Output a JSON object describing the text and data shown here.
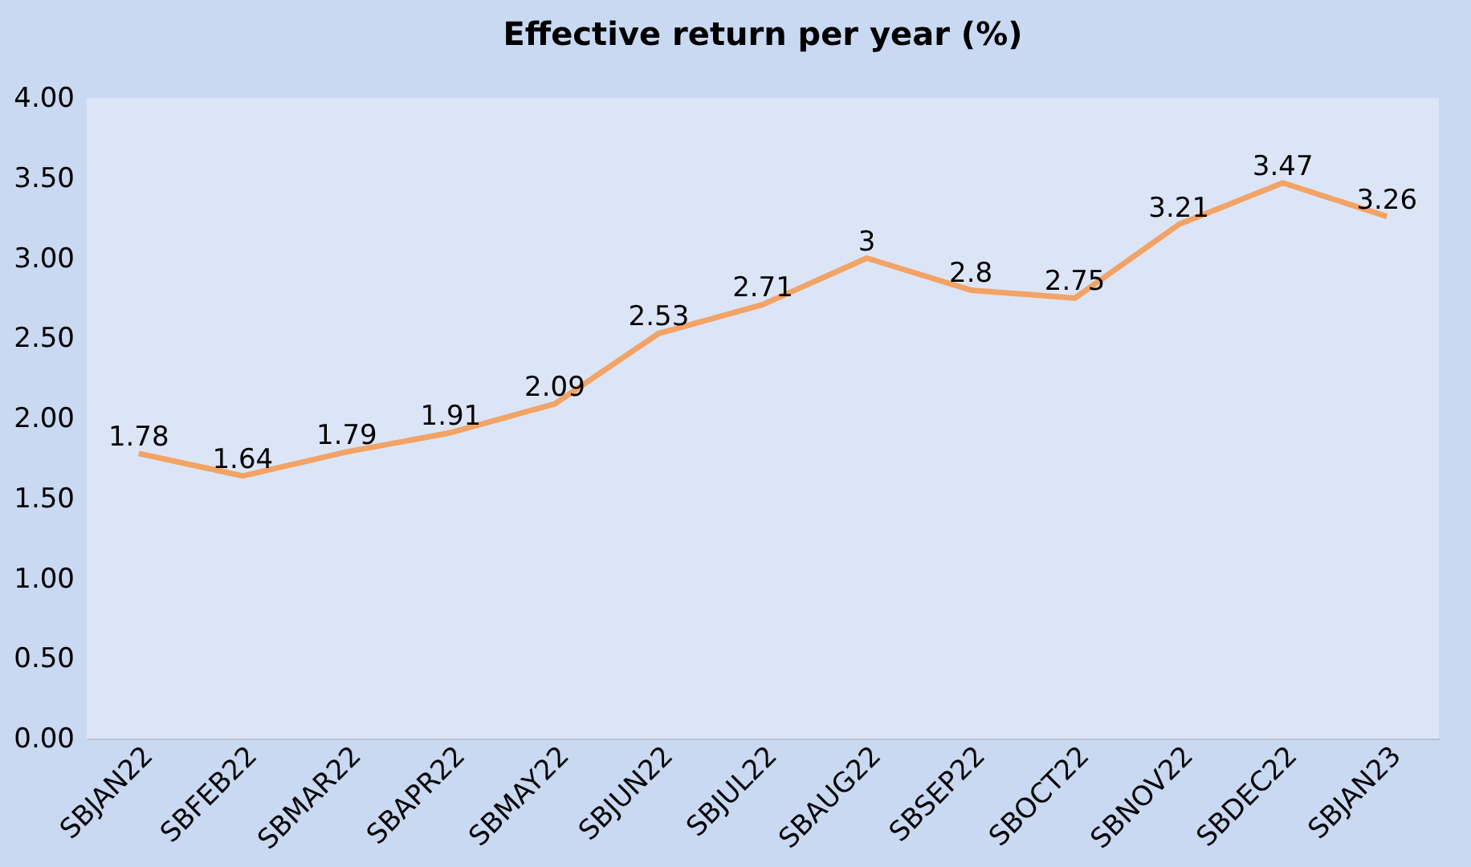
{
  "chart_data": {
    "type": "line",
    "title": "Effective return per year (%)",
    "categories": [
      "SBJAN22",
      "SBFEB22",
      "SBMAR22",
      "SBAPR22",
      "SBMAY22",
      "SBJUN22",
      "SBJUL22",
      "SBAUG22",
      "SBSEP22",
      "SBOCT22",
      "SBNOV22",
      "SBDEC22",
      "SBJAN23"
    ],
    "series": [
      {
        "color": "#f2a365",
        "values": [
          1.78,
          1.64,
          1.79,
          1.91,
          2.09,
          2.53,
          2.71,
          3,
          2.8,
          2.75,
          3.21,
          3.47,
          3.26
        ]
      }
    ],
    "ylim": [
      0,
      4
    ],
    "yticks": [
      {
        "value": 0,
        "label": "0.00"
      },
      {
        "value": 0.5,
        "label": "0.50"
      },
      {
        "value": 1,
        "label": "1.00"
      },
      {
        "value": 1.5,
        "label": "1.50"
      },
      {
        "value": 2,
        "label": "2.00"
      },
      {
        "value": 2.5,
        "label": "2.50"
      },
      {
        "value": 3,
        "label": "3.00"
      },
      {
        "value": 3.5,
        "label": "3.50"
      },
      {
        "value": 4,
        "label": "4.00"
      }
    ],
    "grid": false,
    "legend": false,
    "marker": "none",
    "line_style": "solid",
    "data_labels": true
  }
}
